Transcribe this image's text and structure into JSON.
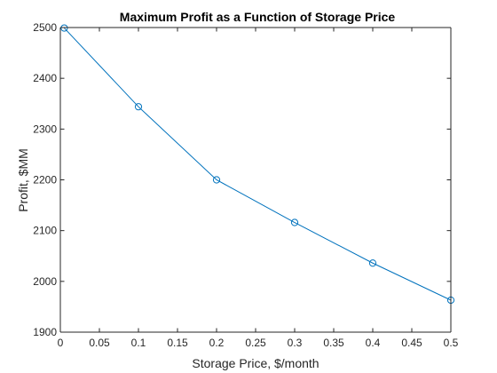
{
  "chart_data": {
    "type": "line",
    "title": "Maximum Profit as a Function of Storage Price",
    "xlabel": "Storage Price, $/month",
    "ylabel": "Profit, $MM",
    "xlim": [
      0,
      0.5
    ],
    "ylim": [
      1900,
      2500
    ],
    "xticks": [
      "0",
      "0.05",
      "0.1",
      "0.15",
      "0.2",
      "0.25",
      "0.3",
      "0.35",
      "0.4",
      "0.45",
      "0.5"
    ],
    "yticks": [
      "1900",
      "2000",
      "2100",
      "2200",
      "2300",
      "2400",
      "2500"
    ],
    "grid": false,
    "series": [
      {
        "x": [
          0.005,
          0.1,
          0.2,
          0.3,
          0.4,
          0.5
        ],
        "y": [
          2499,
          2344,
          2200,
          2116,
          2036,
          1963
        ],
        "color": "#0072BD",
        "marker": "circle"
      }
    ]
  }
}
